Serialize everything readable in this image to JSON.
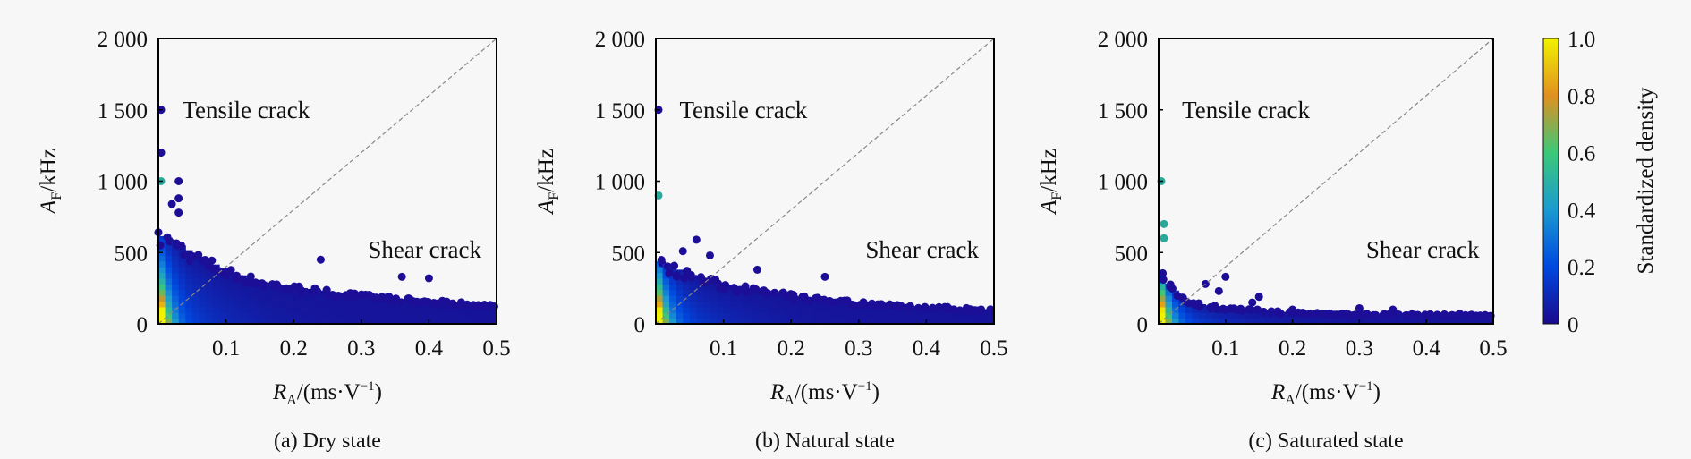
{
  "chart_data": [
    {
      "type": "scatter",
      "caption": "(a) Dry state",
      "xlabel_main": "R",
      "xlabel_sub": "A",
      "xlabel_rest": "/(ms·V",
      "xlabel_sup": "−1",
      "xlabel_end": ")",
      "ylabel_main": "A",
      "ylabel_sub": "F",
      "ylabel_rest": "/kHz",
      "xlim": [
        0,
        0.5
      ],
      "ylim": [
        0,
        2000
      ],
      "xticks": [
        "0.1",
        "0.2",
        "0.3",
        "0.4",
        "0.5"
      ],
      "yticks": [
        "0",
        "500",
        "1 000",
        "1 500",
        "2 000"
      ],
      "annotations": [
        "Tensile crack",
        "Shear crack"
      ],
      "divider_slope": 4000,
      "envelope": [
        [
          0,
          620
        ],
        [
          0.02,
          600
        ],
        [
          0.05,
          500
        ],
        [
          0.1,
          380
        ],
        [
          0.15,
          300
        ],
        [
          0.2,
          260
        ],
        [
          0.3,
          200
        ],
        [
          0.4,
          160
        ],
        [
          0.5,
          130
        ]
      ],
      "outliers": [
        [
          0.004,
          1500
        ],
        [
          0.004,
          1200
        ],
        [
          0.004,
          1000
        ],
        [
          0.03,
          1000
        ],
        [
          0.03,
          880
        ],
        [
          0.02,
          840
        ],
        [
          0.03,
          780
        ],
        [
          0.24,
          450
        ],
        [
          0.36,
          330
        ],
        [
          0.4,
          320
        ]
      ]
    },
    {
      "type": "scatter",
      "caption": "(b) Natural state",
      "xlabel_main": "R",
      "xlabel_sub": "A",
      "xlabel_rest": "/(ms·V",
      "xlabel_sup": "−1",
      "xlabel_end": ")",
      "ylabel_main": "A",
      "ylabel_sub": "F",
      "ylabel_rest": "/kHz",
      "xlim": [
        0,
        0.5
      ],
      "ylim": [
        0,
        2000
      ],
      "xticks": [
        "0.1",
        "0.2",
        "0.3",
        "0.4",
        "0.5"
      ],
      "yticks": [
        "0",
        "500",
        "1 000",
        "1 500",
        "2 000"
      ],
      "annotations": [
        "Tensile crack",
        "Shear crack"
      ],
      "divider_slope": 4000,
      "envelope": [
        [
          0,
          450
        ],
        [
          0.05,
          350
        ],
        [
          0.1,
          280
        ],
        [
          0.2,
          200
        ],
        [
          0.3,
          150
        ],
        [
          0.4,
          120
        ],
        [
          0.5,
          100
        ]
      ],
      "outliers": [
        [
          0.004,
          1500
        ],
        [
          0.004,
          900
        ],
        [
          0.06,
          590
        ],
        [
          0.04,
          510
        ],
        [
          0.08,
          480
        ],
        [
          0.15,
          380
        ],
        [
          0.25,
          330
        ]
      ]
    },
    {
      "type": "scatter",
      "caption": "(c) Saturated state",
      "xlabel_main": "R",
      "xlabel_sub": "A",
      "xlabel_rest": "/(ms·V",
      "xlabel_sup": "−1",
      "xlabel_end": ")",
      "ylabel_main": "A",
      "ylabel_sub": "F",
      "ylabel_rest": "/kHz",
      "xlim": [
        0,
        0.5
      ],
      "ylim": [
        0,
        2000
      ],
      "xticks": [
        "0.1",
        "0.2",
        "0.3",
        "0.4",
        "0.5"
      ],
      "yticks": [
        "0",
        "500",
        "1 000",
        "1 500",
        "2 000"
      ],
      "annotations": [
        "Tensile crack",
        "Shear crack"
      ],
      "divider_slope": 4000,
      "envelope": [
        [
          0,
          380
        ],
        [
          0.02,
          250
        ],
        [
          0.05,
          150
        ],
        [
          0.1,
          110
        ],
        [
          0.2,
          80
        ],
        [
          0.3,
          70
        ],
        [
          0.5,
          60
        ]
      ],
      "outliers": [
        [
          0.004,
          1000
        ],
        [
          0.008,
          700
        ],
        [
          0.008,
          600
        ],
        [
          0.07,
          280
        ],
        [
          0.1,
          330
        ],
        [
          0.09,
          230
        ],
        [
          0.15,
          190
        ],
        [
          0.14,
          150
        ],
        [
          0.2,
          100
        ],
        [
          0.3,
          110
        ],
        [
          0.35,
          100
        ],
        [
          0.45,
          70
        ]
      ]
    }
  ],
  "colorbar": {
    "label": "Standardized density",
    "ticks": [
      "0",
      "0.2",
      "0.4",
      "0.6",
      "0.8",
      "1.0"
    ],
    "range": [
      0,
      1
    ],
    "colors": [
      "#1a0a8c",
      "#0048e0",
      "#1c9ad0",
      "#3cc878",
      "#e09020",
      "#f2f200"
    ]
  }
}
